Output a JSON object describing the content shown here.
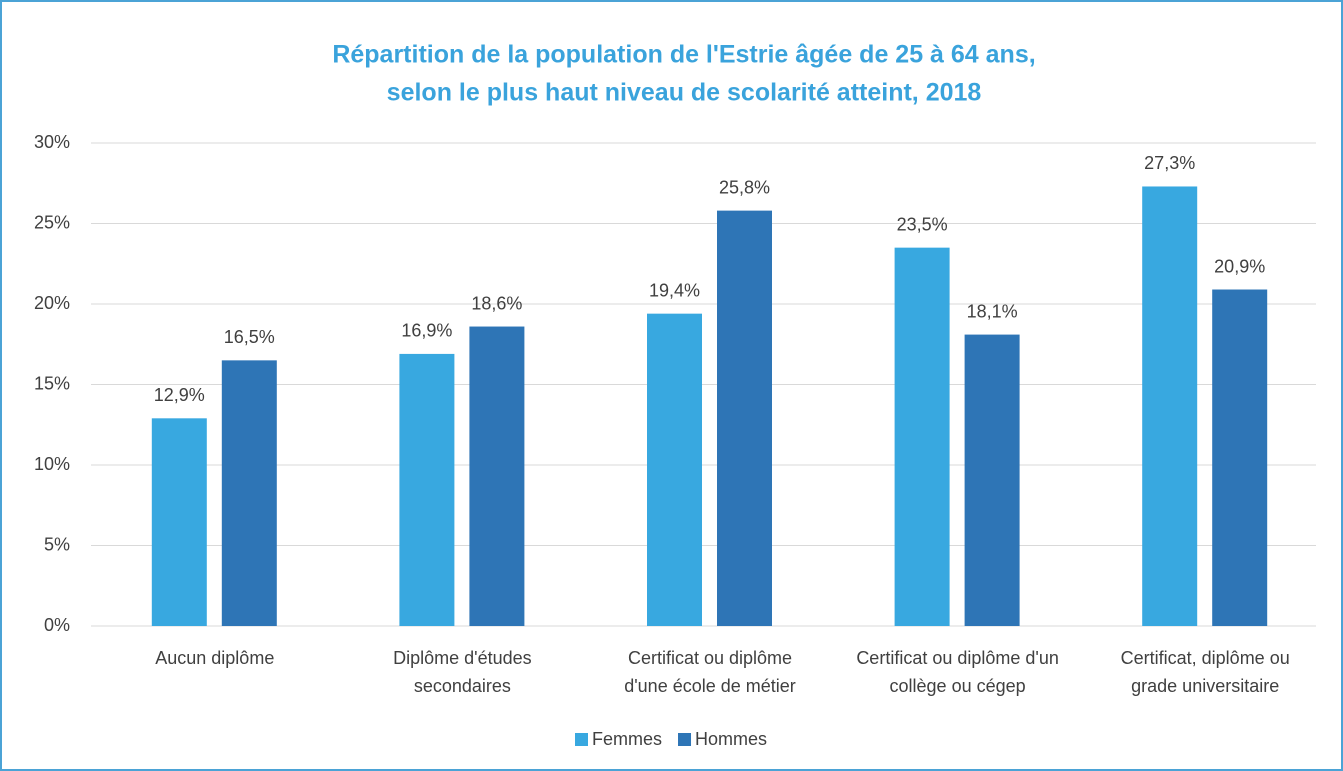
{
  "chart_data": {
    "type": "bar",
    "title": [
      "Répartition de la population de l'Estrie âgée de 25 à 64 ans,",
      "selon le plus haut niveau de scolarité atteint, 2018"
    ],
    "categories": [
      "Aucun diplôme",
      "Diplôme d'études secondaires",
      "Certificat ou diplôme d'une école de métier",
      "Certificat ou diplôme d'un collège ou cégep",
      "Certificat, diplôme ou grade universitaire"
    ],
    "series": [
      {
        "name": "Femmes",
        "color": "#38a8e0",
        "values": [
          12.9,
          16.9,
          19.4,
          23.5,
          27.3
        ],
        "value_labels": [
          "12,9%",
          "16,9%",
          "19,4%",
          "23,5%",
          "27,3%"
        ]
      },
      {
        "name": "Hommes",
        "color": "#2e75b6",
        "values": [
          16.5,
          18.6,
          25.8,
          18.1,
          20.9
        ],
        "value_labels": [
          "16,5%",
          "18,6%",
          "25,8%",
          "18,1%",
          "20,9%"
        ]
      }
    ],
    "ylim": [
      0,
      30
    ],
    "yticks": [
      {
        "value": 0,
        "label": "0%"
      },
      {
        "value": 5,
        "label": "5%"
      },
      {
        "value": 10,
        "label": "10%"
      },
      {
        "value": 15,
        "label": "15%"
      },
      {
        "value": 20,
        "label": "20%"
      },
      {
        "value": 25,
        "label": "25%"
      },
      {
        "value": 30,
        "label": "30%"
      }
    ],
    "grid": true,
    "legend": "bottom"
  }
}
